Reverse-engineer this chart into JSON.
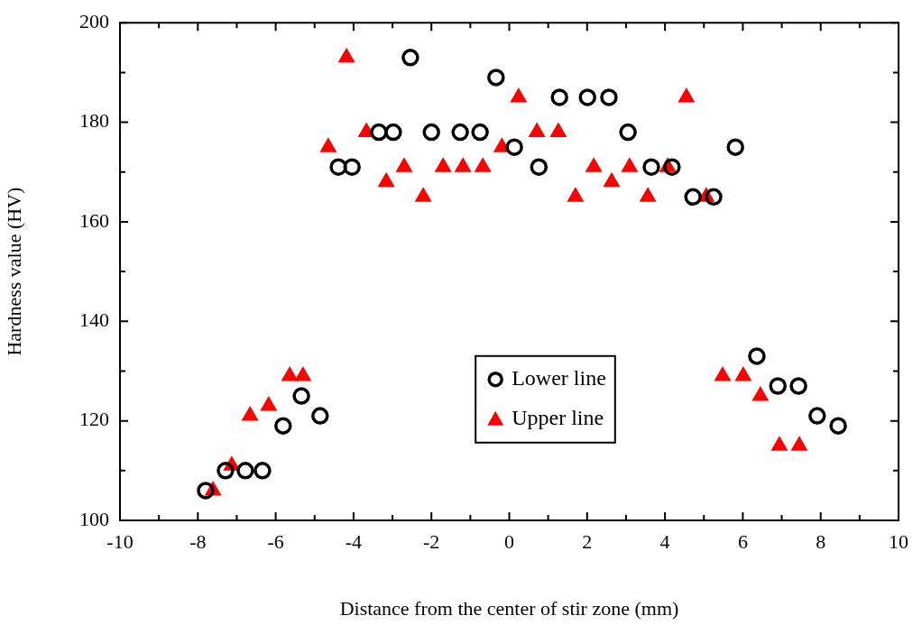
{
  "chart_data": {
    "type": "scatter",
    "xlabel": "Distance from the center of stir zone (mm)",
    "ylabel": "Hardness value (HV)",
    "xlim": [
      -10,
      10
    ],
    "ylim": [
      100,
      200
    ],
    "xticks": [
      -10,
      {
        "value": -9,
        "label": null
      },
      -8,
      {
        "value": -7,
        "label": null
      },
      -6,
      {
        "value": -5,
        "label": null
      },
      -4,
      {
        "value": -3,
        "label": null
      },
      -2,
      {
        "value": -1,
        "label": null
      },
      0,
      {
        "value": 1,
        "label": null
      },
      2,
      {
        "value": 3,
        "label": null
      },
      4,
      {
        "value": 5,
        "label": null
      },
      6,
      {
        "value": 7,
        "label": null
      },
      8,
      {
        "value": 9,
        "label": null
      },
      10
    ],
    "yticks": [
      100,
      {
        "value": 110,
        "label": null
      },
      120,
      {
        "value": 130,
        "label": null
      },
      140,
      {
        "value": 150,
        "label": null
      },
      160,
      {
        "value": 170,
        "label": null
      },
      180,
      {
        "value": 190,
        "label": null
      },
      200
    ],
    "grid": false,
    "legend": "bottom center",
    "series": [
      {
        "name": "Lower line",
        "color": "#000000",
        "marker": "circle",
        "x": [
          -7.8,
          -7.29,
          -6.78,
          -6.34,
          -5.81,
          -5.34,
          -4.86,
          -4.39,
          -4.04,
          -3.35,
          -2.98,
          -2.54,
          -2.0,
          -1.26,
          -0.75,
          -0.34,
          0.13,
          0.76,
          1.29,
          2.01,
          2.56,
          3.05,
          3.65,
          4.18,
          4.72,
          5.25,
          5.81,
          6.36,
          6.9,
          7.43,
          7.91,
          8.45
        ],
        "values": [
          106,
          110,
          110,
          110,
          119,
          125,
          121,
          171,
          171,
          178,
          178,
          193,
          178,
          178,
          178,
          189,
          175,
          171,
          185,
          185,
          185,
          178,
          171,
          171,
          165,
          165,
          175,
          133,
          127,
          127,
          121,
          119
        ]
      },
      {
        "name": "Upper line",
        "color": "#ff0000",
        "marker": "triangle",
        "x": [
          -7.61,
          -7.13,
          -6.66,
          -6.18,
          -5.64,
          -5.3,
          -4.65,
          -4.18,
          -3.67,
          -3.16,
          -2.7,
          -2.21,
          -1.7,
          -1.19,
          -0.68,
          -0.19,
          0.24,
          0.71,
          1.26,
          1.7,
          2.17,
          2.63,
          3.09,
          3.56,
          4.07,
          4.55,
          5.06,
          5.48,
          6.01,
          6.45,
          6.94,
          7.45
        ],
        "values": [
          106,
          111,
          121,
          123,
          129,
          129,
          175,
          193,
          178,
          168,
          171,
          165,
          171,
          171,
          171,
          175,
          185,
          178,
          178,
          165,
          171,
          168,
          171,
          165,
          171,
          185,
          165,
          129,
          129,
          125,
          115,
          115
        ]
      }
    ]
  }
}
